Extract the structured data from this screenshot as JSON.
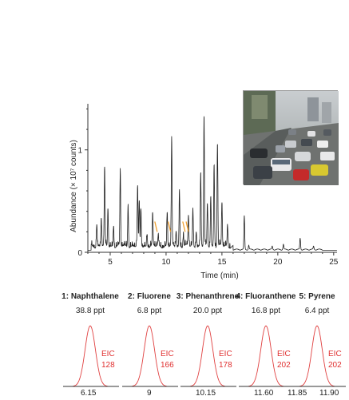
{
  "chart_data": {
    "type": "line",
    "main": {
      "xlabel": "Time (min)",
      "ylabel": "Abundance (× 10⁷ counts)",
      "x_ticks": [
        5,
        10,
        15,
        20,
        25
      ],
      "y_ticks": [
        0,
        1
      ],
      "xlim": [
        3,
        25.3
      ],
      "ylim": [
        0,
        1.45
      ],
      "orange_markers_min": [
        9.1,
        10.3,
        11.6,
        11.9
      ],
      "peaks": [
        {
          "t": 3.8,
          "h": 0.22
        },
        {
          "t": 4.2,
          "h": 0.28
        },
        {
          "t": 4.5,
          "h": 0.75
        },
        {
          "t": 4.8,
          "h": 0.35
        },
        {
          "t": 5.3,
          "h": 0.2
        },
        {
          "t": 5.9,
          "h": 0.72
        },
        {
          "t": 6.6,
          "h": 0.4
        },
        {
          "t": 7.45,
          "h": 0.58
        },
        {
          "t": 7.6,
          "h": 0.43
        },
        {
          "t": 7.75,
          "h": 0.36
        },
        {
          "t": 8.3,
          "h": 0.12
        },
        {
          "t": 8.8,
          "h": 0.3
        },
        {
          "t": 9.3,
          "h": 0.1
        },
        {
          "t": 10.1,
          "h": 0.33
        },
        {
          "t": 10.5,
          "h": 1.05
        },
        {
          "t": 10.9,
          "h": 0.16
        },
        {
          "t": 11.2,
          "h": 0.53
        },
        {
          "t": 11.55,
          "h": 0.12
        },
        {
          "t": 12.0,
          "h": 0.3
        },
        {
          "t": 12.4,
          "h": 0.35
        },
        {
          "t": 12.7,
          "h": 0.16
        },
        {
          "t": 13.1,
          "h": 0.72
        },
        {
          "t": 13.4,
          "h": 1.27
        },
        {
          "t": 13.7,
          "h": 0.4
        },
        {
          "t": 14.0,
          "h": 0.5
        },
        {
          "t": 14.3,
          "h": 0.8
        },
        {
          "t": 14.6,
          "h": 1.0
        },
        {
          "t": 15.0,
          "h": 0.42
        },
        {
          "t": 15.5,
          "h": 0.2
        },
        {
          "t": 17.0,
          "h": 0.33
        },
        {
          "t": 17.4,
          "h": 0.04
        },
        {
          "t": 19.5,
          "h": 0.03
        },
        {
          "t": 20.5,
          "h": 0.05
        },
        {
          "t": 22.0,
          "h": 0.11
        },
        {
          "t": 23.2,
          "h": 0.03
        }
      ]
    },
    "eic": [
      {
        "label": "1: Naphthalene",
        "conc": "38.8 ppt",
        "eic_text": "EIC",
        "eic_mass": "128",
        "ticks": [
          "6.15"
        ]
      },
      {
        "label": "2: Fluorene",
        "conc": "6.8 ppt",
        "eic_text": "EIC",
        "eic_mass": "166",
        "ticks": [
          "9"
        ]
      },
      {
        "label": "3: Phenanthrene",
        "conc": "20.0 ppt",
        "eic_text": "EIC",
        "eic_mass": "178",
        "ticks": [
          "10.15"
        ]
      },
      {
        "label": "4: Fluoranthene",
        "conc": "16.8 ppt",
        "eic_text": "EIC",
        "eic_mass": "202",
        "ticks": [
          "11.60"
        ]
      },
      {
        "label": "5: Pyrene",
        "conc": "6.4 ppt",
        "eic_text": "EIC",
        "eic_mass": "202",
        "ticks": [
          "11.85",
          "11.90"
        ]
      }
    ]
  },
  "colors": {
    "trace": "#222222",
    "axis": "#333333",
    "eic_peak": "#e04040",
    "eic_text": "#e03030",
    "marker": "#f0a030"
  },
  "photo": {
    "icon": "traffic-photo"
  }
}
